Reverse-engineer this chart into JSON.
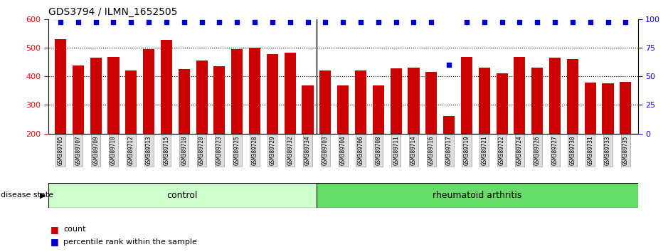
{
  "title": "GDS3794 / ILMN_1652505",
  "samples": [
    "GSM389705",
    "GSM389707",
    "GSM389709",
    "GSM389710",
    "GSM389712",
    "GSM389713",
    "GSM389715",
    "GSM389718",
    "GSM389720",
    "GSM389723",
    "GSM389725",
    "GSM389728",
    "GSM389729",
    "GSM389732",
    "GSM389734",
    "GSM389703",
    "GSM389704",
    "GSM389706",
    "GSM389708",
    "GSM389711",
    "GSM389714",
    "GSM389716",
    "GSM389717",
    "GSM389719",
    "GSM389721",
    "GSM389722",
    "GSM389724",
    "GSM389726",
    "GSM389727",
    "GSM389730",
    "GSM389731",
    "GSM389733",
    "GSM389735"
  ],
  "bar_values": [
    530,
    438,
    465,
    468,
    420,
    495,
    527,
    425,
    455,
    435,
    495,
    500,
    477,
    482,
    367,
    420,
    368,
    420,
    368,
    428,
    430,
    415,
    262,
    468,
    430,
    410,
    467,
    430,
    465,
    460,
    377,
    375,
    380
  ],
  "percentile_values": [
    97,
    97,
    97,
    97,
    97,
    97,
    97,
    97,
    97,
    97,
    97,
    97,
    97,
    97,
    97,
    97,
    97,
    97,
    97,
    97,
    97,
    97,
    60,
    97,
    97,
    97,
    97,
    97,
    97,
    97,
    97,
    97,
    97
  ],
  "control_count": 15,
  "rheumatoid_count": 18,
  "bar_color": "#CC0000",
  "dot_color": "#0000CC",
  "ymin": 200,
  "ymax": 600,
  "yticks_left": [
    200,
    300,
    400,
    500,
    600
  ],
  "yticks_right": [
    0,
    25,
    50,
    75,
    100
  ],
  "control_color": "#CCFFCC",
  "ra_color": "#66DD66",
  "control_label": "control",
  "ra_label": "rheumatoid arthritis",
  "disease_state_label": "disease state",
  "legend_count": "count",
  "legend_percentile": "percentile rank within the sample",
  "grid_lines": [
    300,
    400,
    500
  ]
}
